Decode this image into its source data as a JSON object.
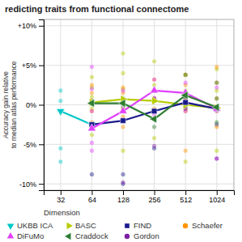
{
  "chart_data": {
    "type": "scatter",
    "title": "redicting traits from functional connectome",
    "xlabel": "Dimension",
    "ylabel": "Accuracy gain relative\nto median atlas performance",
    "log": "x",
    "grid": true,
    "legend": "bottom",
    "xlim": [
      22,
      1500
    ],
    "xticks": [
      32,
      64,
      128,
      256,
      512,
      1024
    ],
    "ylim": [
      -0.108,
      0.108
    ],
    "yticks": [
      {
        "value": -0.1,
        "label": "-10%"
      },
      {
        "value": -0.05,
        "label": "-5%"
      },
      {
        "value": 0.0,
        "label": "0%"
      },
      {
        "value": 0.05,
        "label": "+5%"
      },
      {
        "value": 0.1,
        "label": "+10%"
      }
    ],
    "series": [
      {
        "name": "UKBB ICA",
        "color": "#00c8c8",
        "marker": "triangle-down",
        "x": [
          32,
          32,
          32,
          32
        ],
        "values": [
          0.018,
          0.005,
          -0.055,
          -0.072
        ],
        "mean_x": [
          32,
          64
        ],
        "mean": [
          -0.008,
          -0.025
        ]
      },
      {
        "name": "BASC",
        "color": "#b8cc00",
        "marker": "triangle-right",
        "x": [
          64,
          64,
          64,
          64,
          64,
          128,
          128,
          128,
          128,
          128,
          256,
          256,
          256,
          256,
          512,
          512,
          512,
          512,
          1024,
          1024,
          1024,
          1024
        ],
        "values": [
          0.035,
          0.022,
          0.01,
          -0.005,
          -0.038,
          0.065,
          0.04,
          0.02,
          -0.005,
          -0.058,
          0.055,
          0.025,
          0.005,
          -0.042,
          0.038,
          0.018,
          -0.005,
          -0.072,
          0.045,
          0.018,
          -0.008,
          -0.058
        ],
        "mean_x": [
          64,
          128,
          256,
          512,
          1024
        ],
        "mean": [
          0.003,
          0.007,
          0.005,
          0.0,
          -0.004
        ]
      },
      {
        "name": "FIND",
        "color": "#1a1a8c",
        "marker": "square",
        "x": [
          64,
          128,
          256,
          512,
          1024,
          128
        ],
        "values": [
          -0.088,
          -0.088,
          -0.055,
          -0.002,
          -0.025,
          -0.1
        ],
        "mean_x": [
          64,
          128,
          256,
          512,
          1024
        ],
        "mean": [
          -0.025,
          -0.02,
          -0.008,
          0.003,
          -0.005
        ]
      },
      {
        "name": "Schaefer",
        "color": "#ff9500",
        "marker": "circle",
        "x": [
          64,
          64,
          64,
          64,
          64,
          128,
          128,
          128,
          128,
          128,
          128,
          256,
          256,
          256,
          256,
          256,
          512,
          512,
          512,
          512,
          512,
          1024,
          1024,
          1024,
          1024,
          1024
        ],
        "values": [
          0.025,
          0.015,
          0.005,
          -0.008,
          -0.022,
          0.022,
          0.015,
          0.005,
          -0.005,
          -0.015,
          -0.028,
          0.032,
          0.018,
          0.008,
          -0.005,
          -0.018,
          0.038,
          0.025,
          0.008,
          -0.008,
          -0.058,
          0.048,
          0.028,
          0.008,
          -0.005,
          -0.028
        ]
      },
      {
        "name": "DiFuMo",
        "color": "#e040fb",
        "marker": "triangle-up",
        "x": [
          64,
          64,
          64,
          64,
          64,
          128,
          128,
          128,
          256,
          256,
          256,
          512,
          512,
          512,
          1024,
          1024,
          1024
        ],
        "values": [
          0.048,
          0.02,
          -0.008,
          -0.048,
          -0.058,
          0.018,
          0.005,
          -0.008,
          0.032,
          0.008,
          -0.012,
          0.028,
          0.008,
          -0.008,
          0.022,
          -0.008,
          -0.068
        ],
        "mean_x": [
          64,
          128,
          256,
          512,
          1024
        ],
        "mean": [
          -0.03,
          -0.008,
          0.018,
          0.015,
          -0.005
        ]
      },
      {
        "name": "Craddock",
        "color": "#2e7d32",
        "marker": "triangle-left",
        "x": [
          64,
          128,
          128,
          256,
          256,
          512,
          512,
          1024,
          1024,
          1024
        ],
        "values": [
          0.005,
          0.008,
          -0.002,
          -0.008,
          -0.028,
          0.038,
          0.008,
          0.028,
          0.008,
          -0.022
        ],
        "mean_x": [
          64,
          128,
          256,
          512,
          1024
        ],
        "mean": [
          0.002,
          0.002,
          -0.018,
          0.012,
          -0.003
        ]
      },
      {
        "name": "Gordon",
        "color": "#7b1fa2",
        "marker": "circle",
        "x": [
          128,
          256,
          256,
          512,
          1024,
          1024
        ],
        "values": [
          -0.098,
          -0.052,
          0.008,
          -0.005,
          -0.005,
          -0.068
        ]
      }
    ]
  }
}
